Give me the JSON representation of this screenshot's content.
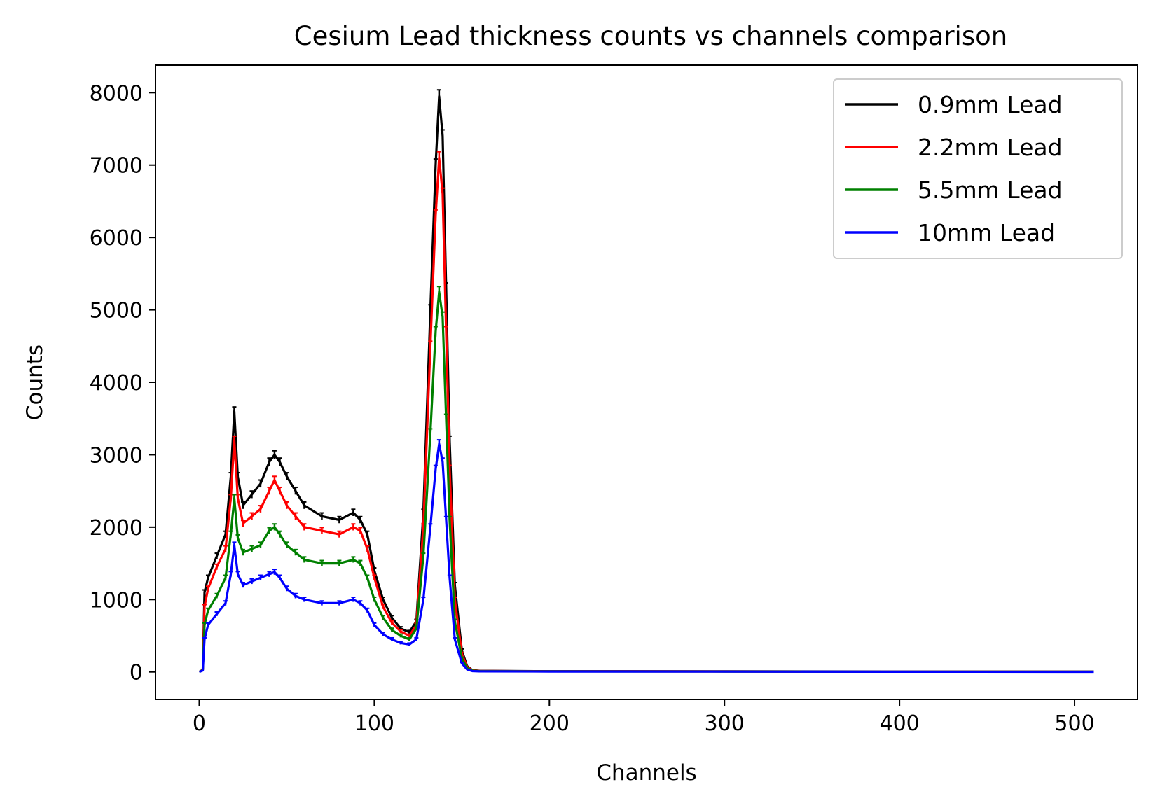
{
  "chart_data": {
    "type": "line",
    "title": "Cesium Lead thickness counts vs channels comparison",
    "xlabel": "Channels",
    "ylabel": "Counts",
    "xlim": [
      -25,
      536
    ],
    "ylim": [
      -380,
      8380
    ],
    "xticks": [
      0,
      100,
      200,
      300,
      400,
      500
    ],
    "yticks": [
      0,
      1000,
      2000,
      3000,
      4000,
      5000,
      6000,
      7000,
      8000
    ],
    "grid": false,
    "legend_position": "top-right",
    "error_bars": true,
    "x": [
      0,
      2,
      3,
      5,
      10,
      15,
      18,
      20,
      22,
      25,
      30,
      35,
      40,
      43,
      46,
      50,
      55,
      60,
      70,
      80,
      88,
      92,
      96,
      100,
      105,
      110,
      115,
      120,
      124,
      128,
      132,
      135,
      137,
      139,
      141,
      143,
      146,
      150,
      153,
      156,
      160,
      200,
      300,
      400,
      511
    ],
    "series": [
      {
        "name": "0.9mm Lead",
        "color": "#000000",
        "values": [
          0,
          30,
          1100,
          1300,
          1600,
          1900,
          2700,
          3600,
          2700,
          2300,
          2450,
          2600,
          2900,
          3000,
          2900,
          2700,
          2500,
          2300,
          2150,
          2100,
          2200,
          2100,
          1900,
          1400,
          1000,
          750,
          600,
          550,
          700,
          2200,
          5000,
          7000,
          7950,
          7400,
          5300,
          3200,
          1200,
          300,
          80,
          25,
          15,
          10,
          8,
          6,
          5
        ]
      },
      {
        "name": "2.2mm Lead",
        "color": "#ff0000",
        "values": [
          0,
          30,
          900,
          1150,
          1450,
          1700,
          2400,
          3200,
          2400,
          2050,
          2150,
          2250,
          2500,
          2650,
          2500,
          2300,
          2150,
          2000,
          1950,
          1900,
          2000,
          1950,
          1700,
          1300,
          900,
          680,
          560,
          500,
          650,
          2000,
          4500,
          6300,
          7100,
          6600,
          4700,
          2800,
          1000,
          250,
          70,
          22,
          13,
          9,
          7,
          5,
          4
        ]
      },
      {
        "name": "5.5mm Lead",
        "color": "#008000",
        "values": [
          0,
          25,
          650,
          850,
          1050,
          1300,
          1900,
          2400,
          1850,
          1650,
          1700,
          1750,
          1950,
          2000,
          1900,
          1750,
          1650,
          1550,
          1500,
          1500,
          1550,
          1500,
          1300,
          1000,
          750,
          580,
          500,
          450,
          600,
          1600,
          3300,
          4700,
          5250,
          4900,
          3500,
          2100,
          700,
          190,
          55,
          18,
          11,
          8,
          6,
          4,
          3
        ]
      },
      {
        "name": "10mm Lead",
        "color": "#0000ff",
        "values": [
          0,
          20,
          450,
          650,
          800,
          950,
          1350,
          1750,
          1350,
          1200,
          1250,
          1300,
          1350,
          1380,
          1300,
          1150,
          1050,
          1000,
          950,
          950,
          1000,
          950,
          850,
          650,
          520,
          450,
          400,
          380,
          450,
          1000,
          2000,
          2800,
          3150,
          2900,
          2100,
          1300,
          450,
          120,
          35,
          12,
          8,
          6,
          5,
          3,
          2
        ]
      }
    ]
  }
}
